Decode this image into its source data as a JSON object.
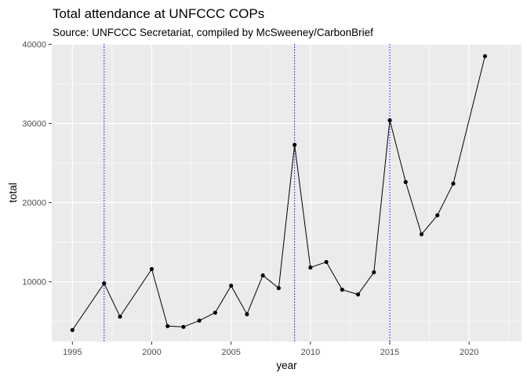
{
  "chart_data": {
    "type": "line",
    "title": "Total attendance at UNFCCC COPs",
    "subtitle": "Source: UNFCCC Secretariat, compiled by McSweeney/CarbonBrief",
    "xlabel": "year",
    "ylabel": "total",
    "xlim": [
      1993.7,
      2023.3
    ],
    "ylim": [
      2450,
      40050
    ],
    "x_ticks": [
      1995,
      2000,
      2005,
      2010,
      2015,
      2020
    ],
    "y_ticks": [
      10000,
      20000,
      30000,
      40000
    ],
    "x_tick_labels": [
      "1995",
      "2000",
      "2005",
      "2010",
      "2015",
      "2020"
    ],
    "y_tick_labels": [
      "10000",
      "20000",
      "30000",
      "40000"
    ],
    "vertical_reference_lines": [
      1997,
      2009,
      2015
    ],
    "reference_line_color": "#0000ff",
    "line_color": "#000000",
    "point_color": "#000000",
    "panel_background": "#ebebeb",
    "grid": true,
    "grid_color": "#ffffff",
    "series": [
      {
        "x": [
          1995,
          1997,
          1998,
          2000,
          2001,
          2002,
          2003,
          2004,
          2005,
          2006,
          2007,
          2008,
          2009,
          2010,
          2011,
          2012,
          2013,
          2014,
          2015,
          2016,
          2017,
          2018,
          2019,
          2021
        ],
        "y": [
          3900,
          9800,
          5600,
          11600,
          4400,
          4300,
          5100,
          6100,
          9500,
          5900,
          10800,
          9200,
          27300,
          11800,
          12500,
          9000,
          8400,
          11200,
          30400,
          22600,
          16000,
          18400,
          22400,
          38500
        ]
      }
    ]
  }
}
